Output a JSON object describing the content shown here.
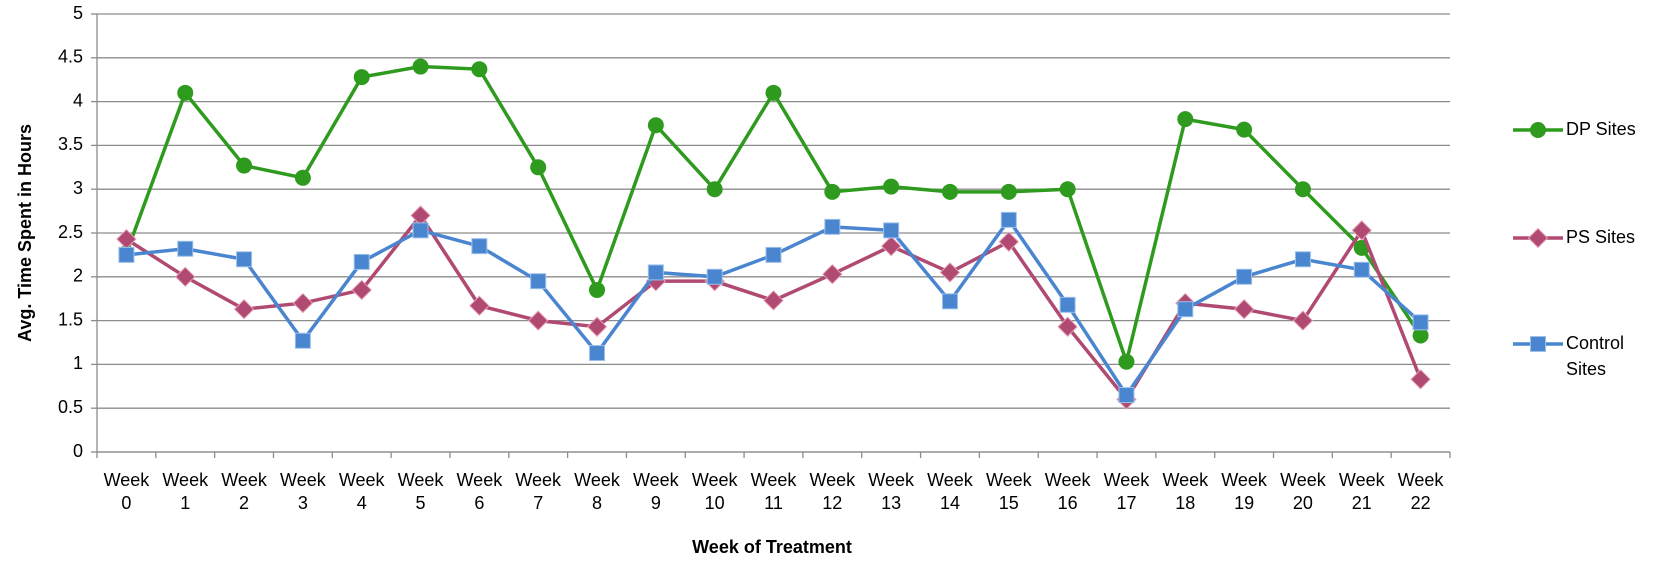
{
  "chart_data": {
    "type": "line",
    "x_label": "Week of Treatment",
    "y_label": "Avg. Time Spent in Hours",
    "categories": [
      "Week 0",
      "Week 1",
      "Week 2",
      "Week 3",
      "Week 4",
      "Week 5",
      "Week 6",
      "Week 7",
      "Week 8",
      "Week 9",
      "Week 10",
      "Week 11",
      "Week 12",
      "Week 13",
      "Week 14",
      "Week 15",
      "Week 16",
      "Week 17",
      "Week 18",
      "Week 19",
      "Week 20",
      "Week 21",
      "Week 22"
    ],
    "series": [
      {
        "name": "DP Sites",
        "color": "#2e9a1e",
        "marker": "circle",
        "values": [
          2.27,
          4.1,
          3.27,
          3.13,
          4.28,
          4.4,
          4.37,
          3.25,
          1.85,
          3.73,
          3.0,
          4.1,
          2.97,
          3.03,
          2.97,
          2.97,
          3.0,
          1.03,
          3.8,
          3.68,
          3.0,
          2.33,
          1.33
        ]
      },
      {
        "name": "PS Sites",
        "color": "#b04a72",
        "marker": "diamond",
        "values": [
          2.43,
          2.0,
          1.63,
          1.7,
          1.85,
          2.7,
          1.67,
          1.5,
          1.43,
          1.95,
          1.95,
          1.73,
          2.03,
          2.35,
          2.05,
          2.4,
          1.43,
          0.6,
          1.7,
          1.63,
          1.5,
          2.53,
          0.83
        ]
      },
      {
        "name": "Control Sites",
        "color": "#4a86d0",
        "marker": "square",
        "values": [
          2.25,
          2.32,
          2.2,
          1.27,
          2.17,
          2.53,
          2.35,
          1.95,
          1.13,
          2.05,
          2.0,
          2.25,
          2.57,
          2.53,
          1.72,
          2.65,
          1.68,
          0.65,
          1.63,
          2.0,
          2.2,
          2.08,
          1.48
        ]
      }
    ],
    "ylim": [
      0,
      5
    ],
    "yticks": [
      0,
      0.5,
      1,
      1.5,
      2,
      2.5,
      3,
      3.5,
      4,
      4.5,
      5
    ],
    "grid": true,
    "legend": "right"
  }
}
